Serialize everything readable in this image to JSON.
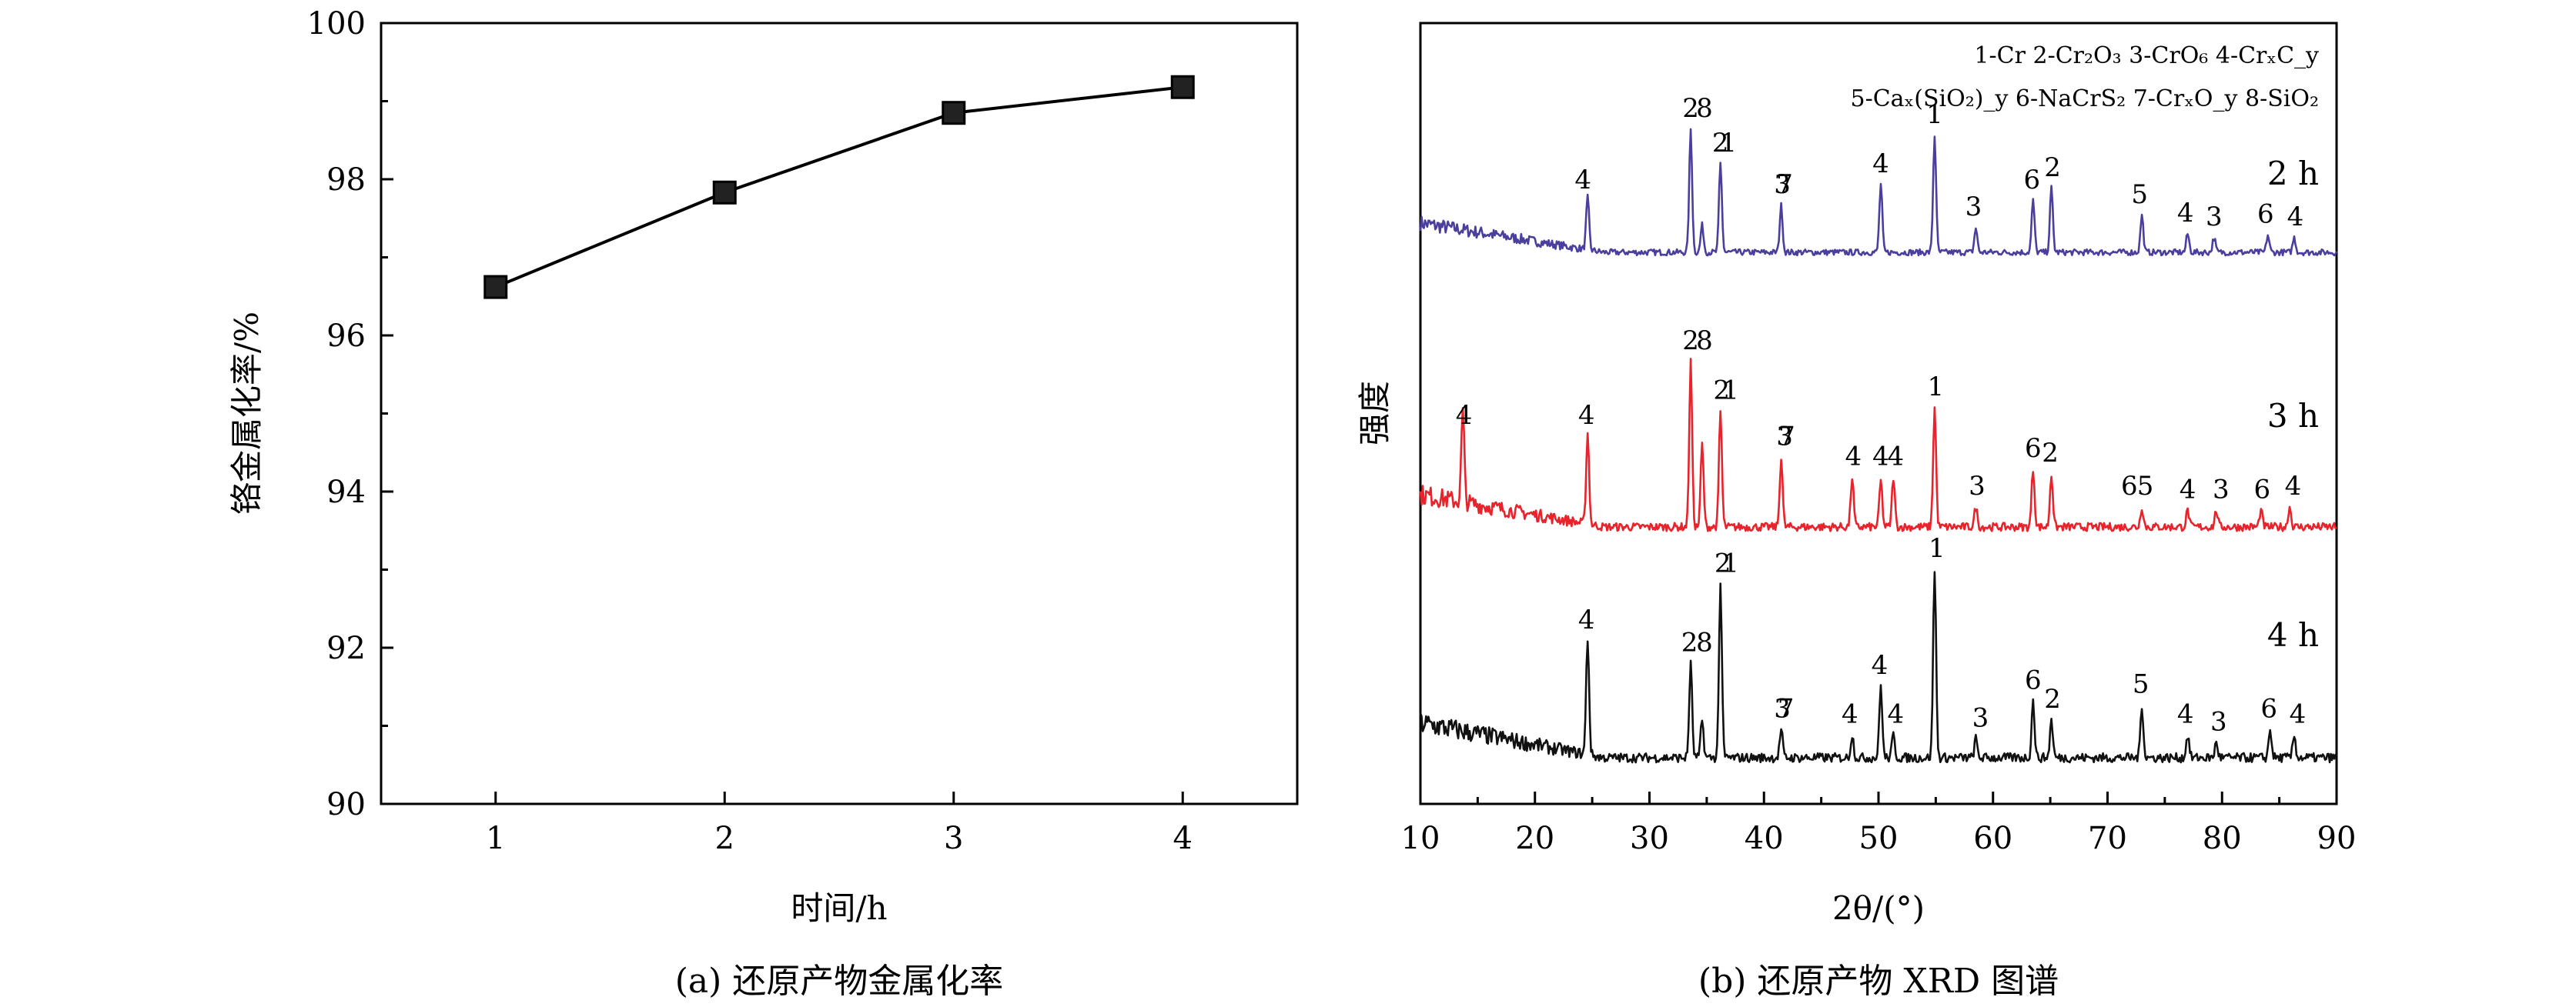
{
  "chart_data": [
    {
      "type": "line",
      "x": [
        1,
        2,
        3,
        4
      ],
      "y": [
        96.62,
        97.83,
        98.85,
        99.18
      ],
      "xlim": [
        0.5,
        4.5
      ],
      "ylim": [
        90,
        100
      ],
      "xticks": [
        "1",
        "2",
        "3",
        "4"
      ],
      "yticks": [
        "90",
        "92",
        "94",
        "96",
        "98",
        "100"
      ],
      "xlabel": "时间/h",
      "ylabel": "铬金属化率/%",
      "caption": "(a) 还原产物金属化率",
      "marker": "square",
      "color": "#000000"
    },
    {
      "type": "line",
      "xlim": [
        10,
        90
      ],
      "xticks": [
        "10",
        "20",
        "30",
        "40",
        "50",
        "60",
        "70",
        "80",
        "90"
      ],
      "xlabel": "2θ/(°)",
      "ylabel": "强度",
      "caption": "(b) 还原产物 XRD 图谱",
      "legend": {
        "line1": "1-Cr  2-Cr₂O₃  3-CrO₆  4-CrₓC_y",
        "line2": "5-Caₓ(SiO₂)_y  6-NaCrS₂  7-CrₓO_y  8-SiO₂"
      },
      "series": [
        {
          "name": "2 h",
          "color": "#4b3f9e",
          "peaks": [
            [
              24.6,
              0.42
            ],
            [
              33.6,
              1.0
            ],
            [
              34.6,
              0.22
            ],
            [
              36.2,
              0.72
            ],
            [
              41.5,
              0.38
            ],
            [
              50.2,
              0.55
            ],
            [
              54.9,
              0.95
            ],
            [
              58.5,
              0.2
            ],
            [
              63.5,
              0.42
            ],
            [
              65.1,
              0.52
            ],
            [
              73.0,
              0.3
            ],
            [
              77.0,
              0.15
            ],
            [
              79.3,
              0.12
            ],
            [
              84.0,
              0.14
            ],
            [
              86.3,
              0.12
            ]
          ],
          "labels": [
            {
              "x": 24.2,
              "t": "4"
            },
            {
              "x": 33.6,
              "t": "2"
            },
            {
              "x": 36.2,
              "t": "2"
            },
            {
              "x": 36.9,
              "t": "1"
            },
            {
              "x": 34.8,
              "t": "8"
            },
            {
              "x": 41.8,
              "t": "7"
            },
            {
              "x": 41.6,
              "t": "3"
            },
            {
              "x": 50.2,
              "t": "4"
            },
            {
              "x": 54.9,
              "t": "1"
            },
            {
              "x": 58.3,
              "t": "3"
            },
            {
              "x": 63.4,
              "t": "6"
            },
            {
              "x": 65.2,
              "t": "2"
            },
            {
              "x": 72.8,
              "t": "5"
            },
            {
              "x": 76.8,
              "t": "4"
            },
            {
              "x": 79.3,
              "t": "3"
            },
            {
              "x": 83.8,
              "t": "6"
            },
            {
              "x": 86.4,
              "t": "4"
            }
          ]
        },
        {
          "name": "3 h",
          "color": "#e8232b",
          "peaks": [
            [
              13.7,
              0.55
            ],
            [
              24.6,
              0.55
            ],
            [
              33.6,
              1.0
            ],
            [
              34.6,
              0.5
            ],
            [
              36.2,
              0.7
            ],
            [
              41.5,
              0.42
            ],
            [
              47.7,
              0.3
            ],
            [
              50.2,
              0.28
            ],
            [
              51.3,
              0.3
            ],
            [
              54.9,
              0.72
            ],
            [
              58.5,
              0.12
            ],
            [
              63.5,
              0.35
            ],
            [
              65.1,
              0.32
            ],
            [
              73.0,
              0.12
            ],
            [
              77.0,
              0.1
            ],
            [
              79.5,
              0.1
            ],
            [
              83.4,
              0.1
            ],
            [
              85.9,
              0.12
            ]
          ],
          "labels": [
            {
              "x": 13.8,
              "t": "4"
            },
            {
              "x": 24.5,
              "t": "4"
            },
            {
              "x": 33.6,
              "t": "2"
            },
            {
              "x": 34.8,
              "t": "8"
            },
            {
              "x": 36.3,
              "t": "2"
            },
            {
              "x": 37.1,
              "t": "1"
            },
            {
              "x": 42.0,
              "t": "7"
            },
            {
              "x": 41.8,
              "t": "3"
            },
            {
              "x": 47.8,
              "t": "4"
            },
            {
              "x": 50.2,
              "t": "4"
            },
            {
              "x": 51.5,
              "t": "4"
            },
            {
              "x": 55.0,
              "t": "1"
            },
            {
              "x": 58.6,
              "t": "3"
            },
            {
              "x": 63.5,
              "t": "6"
            },
            {
              "x": 65.0,
              "t": "2"
            },
            {
              "x": 71.9,
              "t": "6"
            },
            {
              "x": 73.3,
              "t": "5"
            },
            {
              "x": 77.0,
              "t": "4"
            },
            {
              "x": 79.9,
              "t": "3"
            },
            {
              "x": 83.5,
              "t": "6"
            },
            {
              "x": 86.2,
              "t": "4"
            }
          ]
        },
        {
          "name": "4 h",
          "color": "#111111",
          "peaks": [
            [
              24.6,
              0.62
            ],
            [
              33.6,
              0.5
            ],
            [
              34.6,
              0.2
            ],
            [
              36.2,
              0.92
            ],
            [
              41.5,
              0.15
            ],
            [
              47.7,
              0.12
            ],
            [
              50.2,
              0.38
            ],
            [
              51.3,
              0.12
            ],
            [
              54.9,
              1.0
            ],
            [
              58.5,
              0.1
            ],
            [
              63.5,
              0.3
            ],
            [
              65.1,
              0.2
            ],
            [
              73.0,
              0.28
            ],
            [
              77.0,
              0.12
            ],
            [
              79.5,
              0.08
            ],
            [
              84.2,
              0.15
            ],
            [
              86.3,
              0.12
            ]
          ],
          "labels": [
            {
              "x": 24.5,
              "t": "4"
            },
            {
              "x": 33.5,
              "t": "2"
            },
            {
              "x": 34.8,
              "t": "8"
            },
            {
              "x": 36.4,
              "t": "2"
            },
            {
              "x": 37.1,
              "t": "1"
            },
            {
              "x": 41.9,
              "t": "7"
            },
            {
              "x": 41.6,
              "t": "3"
            },
            {
              "x": 47.5,
              "t": "4"
            },
            {
              "x": 50.1,
              "t": "4"
            },
            {
              "x": 51.5,
              "t": "4"
            },
            {
              "x": 55.1,
              "t": "1"
            },
            {
              "x": 58.9,
              "t": "3"
            },
            {
              "x": 63.5,
              "t": "6"
            },
            {
              "x": 65.2,
              "t": "2"
            },
            {
              "x": 72.9,
              "t": "5"
            },
            {
              "x": 76.8,
              "t": "4"
            },
            {
              "x": 79.7,
              "t": "3"
            },
            {
              "x": 84.1,
              "t": "6"
            },
            {
              "x": 86.6,
              "t": "4"
            }
          ]
        }
      ]
    }
  ]
}
